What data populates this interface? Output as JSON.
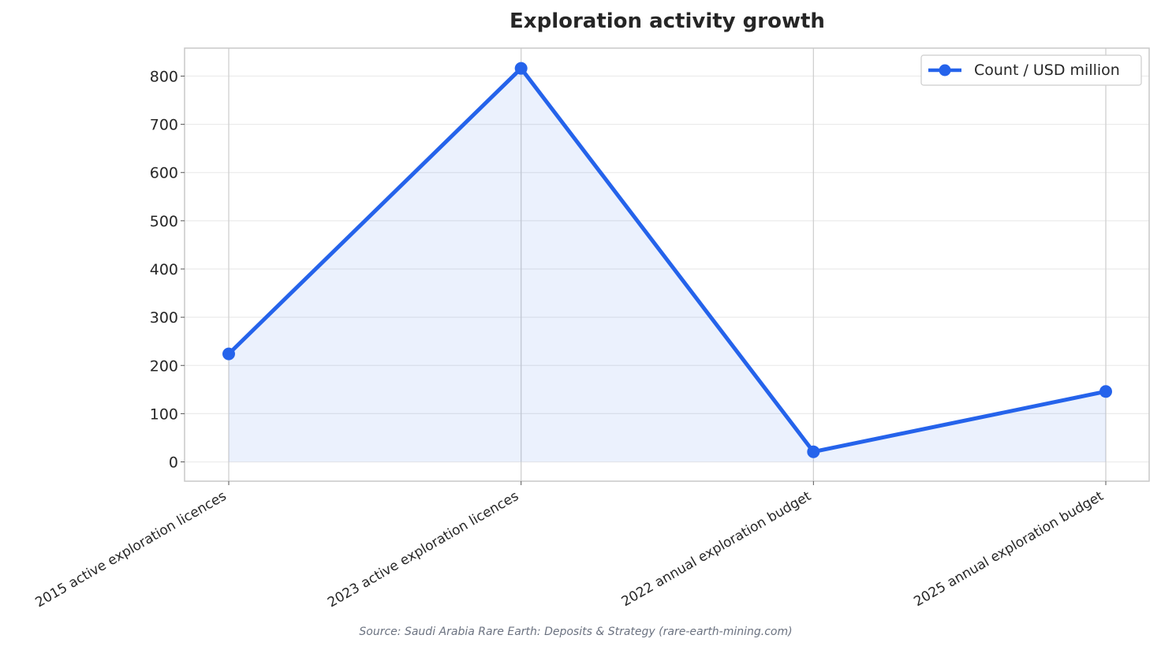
{
  "chart_data": {
    "type": "line",
    "title": "Exploration activity growth",
    "categories": [
      "2015 active exploration licences",
      "2023 active exploration licences",
      "2022 annual exploration budget",
      "2025 annual exploration budget"
    ],
    "series": [
      {
        "name": "Count / USD million",
        "values": [
          224,
          816,
          21,
          146
        ]
      }
    ],
    "xlabel": "",
    "ylabel": "",
    "ylim": [
      -40,
      858
    ],
    "yticks": [
      0,
      100,
      200,
      300,
      400,
      500,
      600,
      700,
      800
    ],
    "grid": true,
    "area_fill": true,
    "legend_position": "top-right",
    "colors": {
      "line": "#2563eb",
      "fill": "#2563eb",
      "grid": "#ebebeb",
      "frame": "#c8c8c8"
    }
  },
  "footer": {
    "source": "Source: Saudi Arabia Rare Earth: Deposits & Strategy (rare-earth-mining.com)"
  }
}
